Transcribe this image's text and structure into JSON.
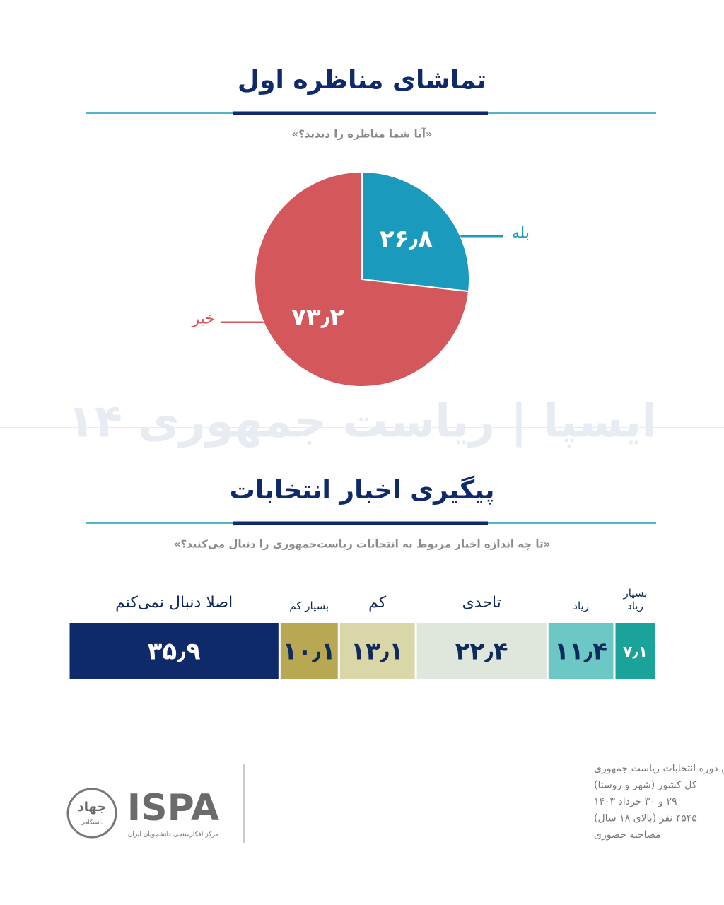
{
  "watermark": "ایسپا | ریاست جمهوری ۱۴",
  "chart_data": [
    {
      "type": "pie",
      "title": "تماشای مناظره اول",
      "subtitle": "«آیا شما مناظره را دیدید؟»",
      "categories": [
        "بله",
        "خیر"
      ],
      "values": [
        26.8,
        73.2
      ],
      "value_labels": [
        "۲۶٫۸",
        "۷۳٫۲"
      ],
      "colors": [
        "#1a9bbd",
        "#d4575c"
      ]
    },
    {
      "type": "stacked-bar",
      "title": "پیگیری اخبار انتخابات",
      "subtitle": "«تا چه اندازه اخبار مربوط به انتخابات ریاست‌جمهوری را دنبال می‌کنید؟»",
      "categories": [
        "بسیار زیاد",
        "زیاد",
        "تاحدی",
        "کم",
        "بسیار کم",
        "اصلا دنبال نمی‌کنم"
      ],
      "values": [
        7.1,
        11.4,
        22.4,
        13.1,
        10.1,
        35.9
      ],
      "value_labels": [
        "۷٫۱",
        "۱۱٫۴",
        "۲۲٫۴",
        "۱۳٫۱",
        "۱۰٫۱",
        "۳۵٫۹"
      ],
      "colors": [
        "#1aa39a",
        "#6cc8c4",
        "#dfe7dc",
        "#d9d6a8",
        "#b9a852",
        "#0f2a6b"
      ]
    }
  ],
  "footer": {
    "logo": "ISPA",
    "logo_caption": "مرکز افکارسنجی دانشجویان ایران",
    "seal": "جهاد",
    "seal_caption": "دانشگاهی",
    "lines": [
      "دیدگاه ایرانیان در خصوص چهاردهمین دوره انتخابات ریاست جمهوری",
      "کل کشور (شهر و روستا)",
      "۲۹ و ۳۰ خرداد ۱۴۰۳",
      "۴۵۴۵ نفر (بالای ۱۸ سال)",
      "مصاحبه حضوری"
    ]
  }
}
